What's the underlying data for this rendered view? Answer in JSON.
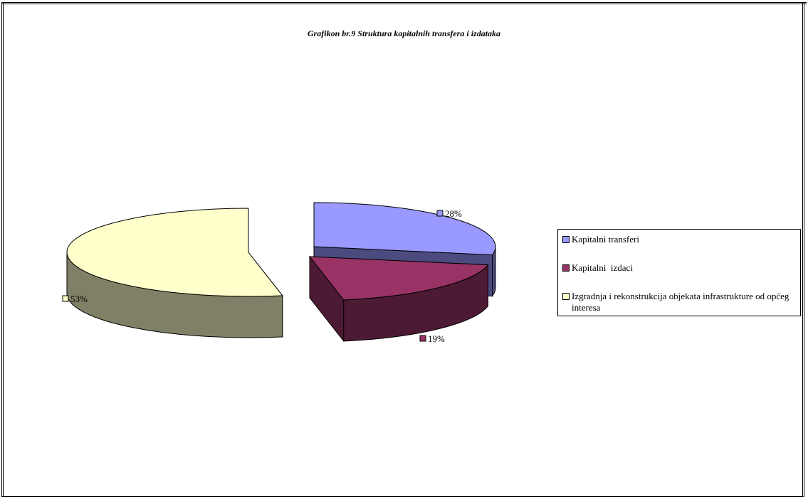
{
  "chart_data": {
    "type": "pie",
    "title": "Grafikon br.9 Struktura kapitalnih transfera i izdataka",
    "slices": [
      {
        "name": "Kapitalni transferi",
        "value": 28,
        "label": "28%",
        "color": "#9999ff",
        "side_color": "#4b4b80"
      },
      {
        "name": "Kapitalni  izdaci",
        "value": 19,
        "label": "19%",
        "color": "#993366",
        "side_color": "#4d1a33"
      },
      {
        "name": "Izgradnja i rekonstrukcija objekata infrastrukture od općeg interesa",
        "value": 53,
        "label": "53%",
        "color": "#ffffcc",
        "side_color": "#808066"
      }
    ],
    "legend_position": "right",
    "three_d": true,
    "exploded": true
  }
}
